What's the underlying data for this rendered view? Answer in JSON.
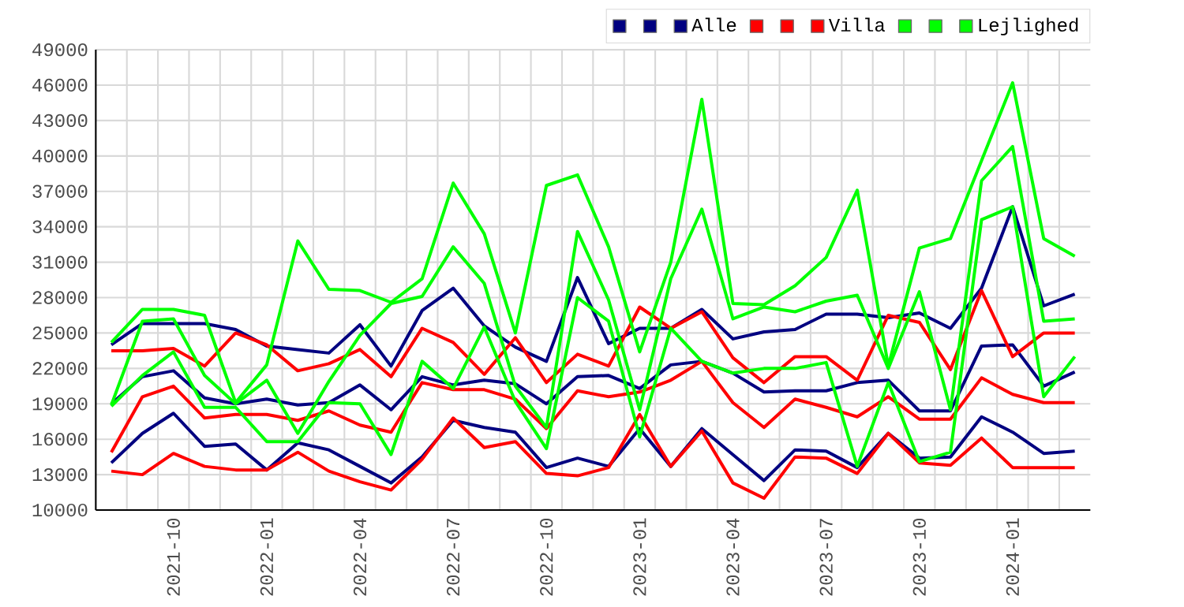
{
  "chart_data": {
    "type": "line",
    "x": [
      "2021-08",
      "2021-09",
      "2021-10",
      "2021-11",
      "2021-12",
      "2022-01",
      "2022-02",
      "2022-03",
      "2022-04",
      "2022-05",
      "2022-06",
      "2022-07",
      "2022-08",
      "2022-09",
      "2022-10",
      "2022-11",
      "2022-12",
      "2023-01",
      "2023-02",
      "2023-03",
      "2023-04",
      "2023-05",
      "2023-06",
      "2023-07",
      "2023-08",
      "2023-09",
      "2023-10",
      "2023-11",
      "2023-12",
      "2024-01",
      "2024-02",
      "2024-03"
    ],
    "xlim": [
      "2021-07-16",
      "2024-03-16"
    ],
    "xticks": [
      "2021-10",
      "2022-01",
      "2022-04",
      "2022-07",
      "2022-10",
      "2023-01",
      "2023-04",
      "2023-07",
      "2023-10",
      "2024-01"
    ],
    "ylim": [
      10000,
      49000
    ],
    "yticks": [
      10000,
      13000,
      16000,
      19000,
      22000,
      25000,
      28000,
      31000,
      34000,
      37000,
      40000,
      43000,
      46000,
      49000
    ],
    "grid": true,
    "legend": "top right",
    "series": [
      {
        "color": "#000080",
        "values": [
          24000,
          25800,
          25800,
          25800,
          25300,
          23900,
          23600,
          23300,
          25700,
          22200,
          26900,
          28800,
          25600,
          23800,
          22600,
          29700,
          24100,
          25400,
          25400,
          27000,
          24500,
          25100,
          25300,
          26600,
          26600,
          26300,
          26700,
          25400,
          28800,
          35700,
          27300,
          28300
        ]
      },
      {
        "color": "#000080",
        "values": [
          19000,
          21300,
          21800,
          19500,
          19000,
          19400,
          18900,
          19100,
          20600,
          18500,
          21300,
          20600,
          21000,
          20700,
          19000,
          21300,
          21400,
          20300,
          22300,
          22600,
          21600,
          20000,
          20100,
          20100,
          20800,
          21000,
          18400,
          18400,
          23900,
          24000,
          20500,
          21700
        ]
      },
      {
        "name": "Alle",
        "color": "#000080",
        "values": [
          14000,
          16500,
          18200,
          15400,
          15600,
          13400,
          15700,
          15100,
          13700,
          12300,
          14500,
          17600,
          17000,
          16600,
          13600,
          14400,
          13700,
          16900,
          13700,
          16900,
          14700,
          12500,
          15100,
          15000,
          13600,
          16500,
          14400,
          14500,
          17900,
          16600,
          14800,
          15000
        ]
      },
      {
        "color": "#ff0000",
        "values": [
          23500,
          23500,
          23700,
          22200,
          25000,
          24000,
          21800,
          22400,
          23600,
          21300,
          25400,
          24200,
          21500,
          24600,
          20800,
          23200,
          22200,
          27200,
          25400,
          26800,
          22900,
          20800,
          23000,
          23000,
          21000,
          26500,
          25900,
          21900,
          28600,
          23000,
          25000,
          25000
        ]
      },
      {
        "color": "#ff0000",
        "values": [
          14900,
          19600,
          20500,
          17800,
          18100,
          18100,
          17600,
          18400,
          17200,
          16600,
          20800,
          20200,
          20200,
          19400,
          16900,
          20100,
          19600,
          20000,
          21000,
          22600,
          19100,
          17000,
          19400,
          18700,
          17900,
          19600,
          17700,
          17700,
          21200,
          19800,
          19100,
          19100
        ]
      },
      {
        "name": "Villa",
        "color": "#ff0000",
        "values": [
          13300,
          13000,
          14800,
          13700,
          13400,
          13400,
          14900,
          13300,
          12400,
          11700,
          14300,
          17800,
          15300,
          15800,
          13100,
          12900,
          13600,
          18100,
          13700,
          16700,
          12300,
          11000,
          14500,
          14400,
          13100,
          16500,
          14000,
          13800,
          16100,
          13600,
          13600,
          13600
        ]
      },
      {
        "color": "#00ff00",
        "values": [
          24200,
          27000,
          27000,
          26500,
          19100,
          22300,
          32800,
          28700,
          28600,
          27600,
          29600,
          37700,
          33400,
          25000,
          37500,
          38400,
          32300,
          23400,
          31000,
          44800,
          27500,
          27400,
          29000,
          31400,
          37100,
          22200,
          32200,
          33000,
          39600,
          46200,
          33000,
          31500
        ]
      },
      {
        "color": "#00ff00",
        "values": [
          18900,
          26000,
          26200,
          21400,
          19000,
          21000,
          16500,
          20900,
          24800,
          27500,
          28100,
          32300,
          29200,
          20500,
          17000,
          33600,
          27800,
          18500,
          29600,
          35500,
          26200,
          27200,
          26800,
          27700,
          28200,
          22000,
          28500,
          18500,
          37900,
          40800,
          26000,
          26200
        ]
      },
      {
        "name": "Lejlighed",
        "color": "#00ff00",
        "values": [
          18800,
          21400,
          23400,
          18700,
          18700,
          15800,
          15800,
          19100,
          19000,
          14700,
          22600,
          20300,
          25500,
          19200,
          15200,
          28000,
          26000,
          16200,
          25400,
          22600,
          21600,
          22000,
          22000,
          22500,
          13700,
          20800,
          14100,
          14900,
          34600,
          35700,
          19600,
          23000
        ]
      }
    ]
  }
}
